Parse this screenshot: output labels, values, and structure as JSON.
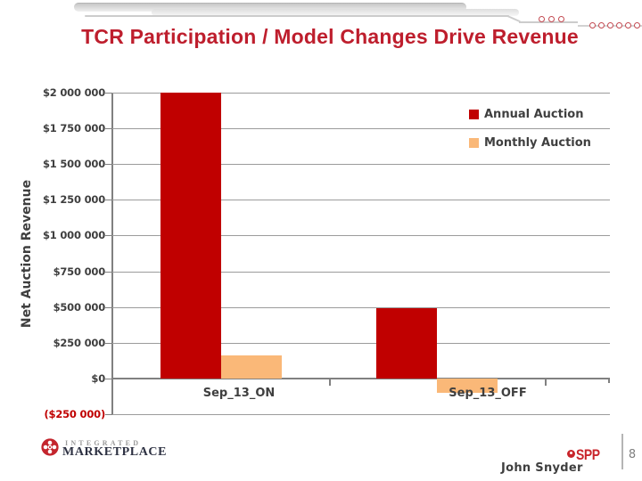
{
  "slide": {
    "title": "TCR Participation / Model Changes Drive Revenue",
    "page_number": "8",
    "author": "John Snyder"
  },
  "footer": {
    "integrated_label": "INTEGRATED",
    "marketplace_label": "MARKETPLACE",
    "spp_label": "SPP"
  },
  "colors": {
    "title_red": "#be1e2d",
    "annual_red": "#c00000",
    "monthly_orange": "#fab878",
    "axis_text": "#3f3f3f",
    "negative_label_red": "#c00000",
    "gridline_gray": "#9b9b9b",
    "axis_line_gray": "#808080"
  },
  "chart_data": {
    "type": "bar",
    "title": "",
    "y_axis_title": "Net Auction Revenue",
    "categories": [
      "Sep_13_ON",
      "Sep_13_OFF"
    ],
    "series": [
      {
        "name": "Annual Auction",
        "color_key": "annual_red",
        "values": [
          2000000,
          490000
        ]
      },
      {
        "name": "Monthly Auction",
        "color_key": "monthly_orange",
        "values": [
          160000,
          -100000
        ]
      }
    ],
    "ylim": [
      -250000,
      2000000
    ],
    "y_tick_step": 250000,
    "y_tick_labels": [
      "($250 000)",
      "$0",
      "$250 000",
      "$500 000",
      "$750 000",
      "$1 000 000",
      "$1 250 000",
      "$1 500 000",
      "$1 750 000",
      "$2 000 000"
    ],
    "grid": true,
    "legend_position": "top-right-inside"
  }
}
